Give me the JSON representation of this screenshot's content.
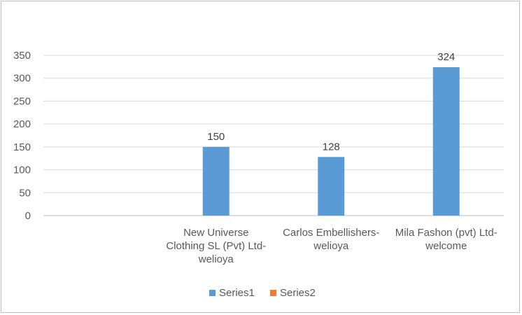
{
  "chart_data": {
    "type": "bar",
    "categories": [
      [
        "",
        ""
      ],
      [
        "New Universe",
        "Clothing SL (Pvt) Ltd-",
        "welioya"
      ],
      [
        "Carlos Embellishers-",
        "welioya"
      ],
      [
        "Mila Fashon (pvt) Ltd-",
        "welcome"
      ]
    ],
    "series": [
      {
        "name": "Series1",
        "values": [
          null,
          150,
          128,
          324
        ],
        "color": "#5b9bd5"
      },
      {
        "name": "Series2",
        "values": [
          null,
          null,
          null,
          null
        ],
        "color": "#ed7d31"
      }
    ],
    "ylim": [
      0,
      350
    ],
    "yticks": [
      0,
      50,
      100,
      150,
      200,
      250,
      300,
      350
    ],
    "data_labels": true,
    "grid": true,
    "legend": "bottom"
  }
}
